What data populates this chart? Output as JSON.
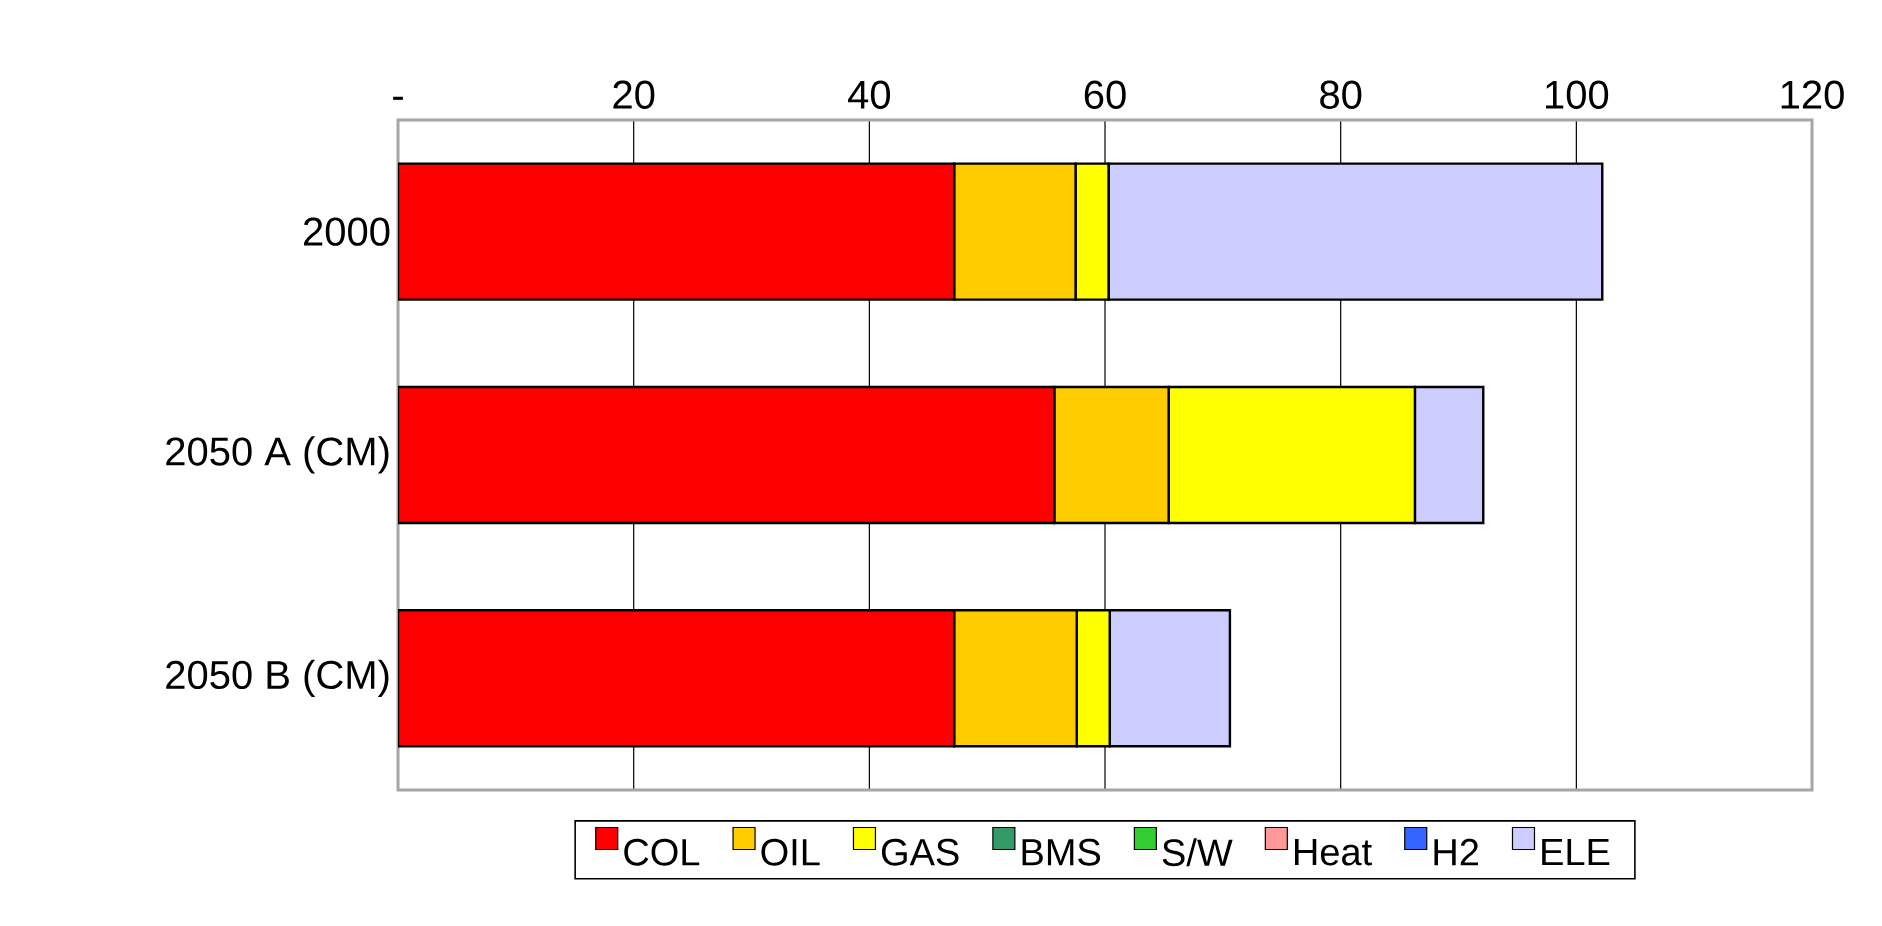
{
  "chart_data": {
    "type": "bar",
    "orientation": "horizontal",
    "stacked": true,
    "categories": [
      "2000",
      "2050 A (CM)",
      "2050 B (CM)"
    ],
    "series": [
      {
        "name": "COL",
        "color": "#ff0000",
        "values": [
          47.2,
          55.7,
          47.2
        ]
      },
      {
        "name": "OIL",
        "color": "#ffcc00",
        "values": [
          10.3,
          9.7,
          10.4
        ]
      },
      {
        "name": "GAS",
        "color": "#ffff00",
        "values": [
          2.8,
          20.9,
          2.8
        ]
      },
      {
        "name": "BMS",
        "color": "#339966",
        "values": [
          0,
          0,
          0
        ]
      },
      {
        "name": "S/W",
        "color": "#33cc33",
        "values": [
          0,
          0,
          0
        ]
      },
      {
        "name": "Heat",
        "color": "#ff9999",
        "values": [
          0,
          0,
          0
        ]
      },
      {
        "name": "H2",
        "color": "#3366ff",
        "values": [
          0,
          0,
          0
        ]
      },
      {
        "name": "ELE",
        "color": "#ccccff",
        "values": [
          41.9,
          5.8,
          10.2
        ]
      }
    ],
    "xlim": [
      0,
      120
    ],
    "xticks": [
      {
        "value": 0,
        "label": "-"
      },
      20,
      40,
      60,
      80,
      100,
      120
    ],
    "grid": "x",
    "legend": "bottom"
  }
}
